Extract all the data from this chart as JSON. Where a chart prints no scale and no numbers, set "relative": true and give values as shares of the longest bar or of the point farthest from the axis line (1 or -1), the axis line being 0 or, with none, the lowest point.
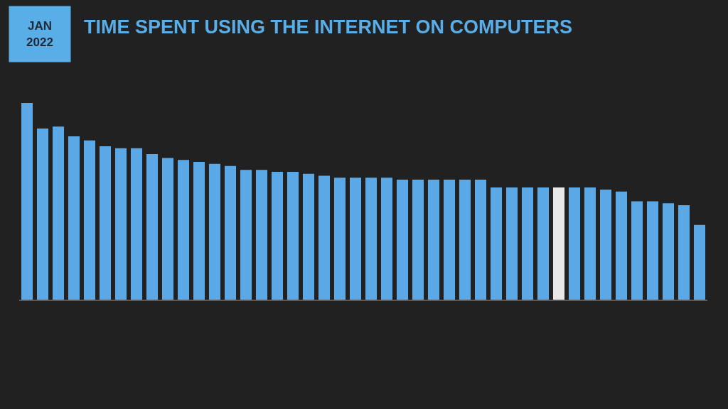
{
  "chart_data": {
    "type": "bar",
    "title": "TIME SPENT USING THE INTERNET ON COMPUTERS",
    "annotations": [
      "JAN\n2022"
    ],
    "relative": true,
    "categories": [
      null,
      null,
      null,
      null,
      null,
      null,
      null,
      null,
      null,
      null,
      null,
      null,
      null,
      null,
      null,
      null,
      null,
      null,
      null,
      null,
      null,
      null,
      null,
      null,
      null,
      null,
      null,
      null,
      null,
      null,
      null,
      null,
      null,
      null,
      null,
      null,
      null,
      null,
      null,
      null,
      null,
      null,
      null,
      null
    ],
    "values": [
      1,
      0.87,
      0.88,
      0.83,
      0.81,
      0.78,
      0.77,
      0.77,
      0.74,
      0.72,
      0.71,
      0.7,
      0.69,
      0.68,
      0.66,
      0.66,
      0.65,
      0.65,
      0.64,
      0.63,
      0.62,
      0.62,
      0.62,
      0.62,
      0.61,
      0.61,
      0.61,
      0.61,
      0.61,
      0.61,
      0.57,
      0.57,
      0.57,
      0.57,
      0.57,
      0.57,
      0.57,
      0.56,
      0.55,
      0.5,
      0.5,
      0.49,
      0.48,
      0.38
    ],
    "colors": [
      "#5aa9e6",
      "#5aa9e6",
      "#5aa9e6",
      "#5aa9e6",
      "#5aa9e6",
      "#5aa9e6",
      "#5aa9e6",
      "#5aa9e6",
      "#5aa9e6",
      "#5aa9e6",
      "#5aa9e6",
      "#5aa9e6",
      "#5aa9e6",
      "#5aa9e6",
      "#5aa9e6",
      "#5aa9e6",
      "#5aa9e6",
      "#5aa9e6",
      "#5aa9e6",
      "#5aa9e6",
      "#5aa9e6",
      "#5aa9e6",
      "#5aa9e6",
      "#5aa9e6",
      "#5aa9e6",
      "#5aa9e6",
      "#5aa9e6",
      "#5aa9e6",
      "#5aa9e6",
      "#5aa9e6",
      "#5aa9e6",
      "#5aa9e6",
      "#5aa9e6",
      "#5aa9e6",
      "#e8e8e8",
      "#5aa9e6",
      "#5aa9e6",
      "#5aa9e6",
      "#5aa9e6",
      "#5aa9e6",
      "#5aa9e6",
      "#5aa9e6",
      "#5aa9e6",
      "#5aa9e6"
    ]
  }
}
